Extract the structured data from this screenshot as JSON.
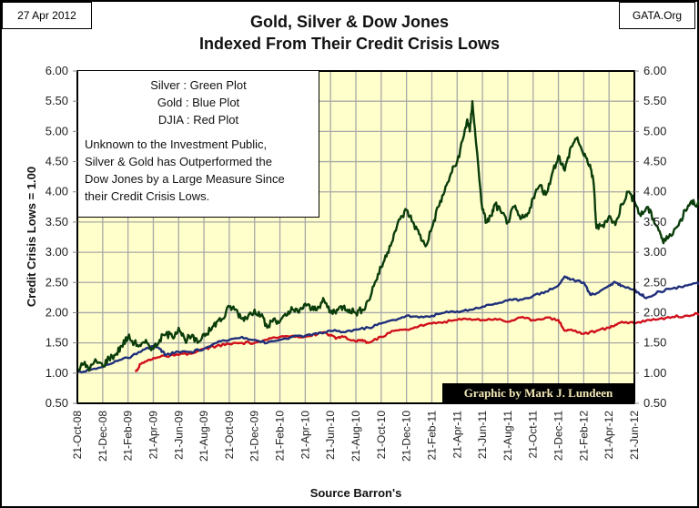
{
  "header": {
    "date": "27 Apr 2012",
    "site": "GATA.Org",
    "title_line1": "Gold, Silver & Dow Jones",
    "title_line2": "Indexed From Their Credit Crisis Lows"
  },
  "legend": {
    "lines": [
      "Silver : Green Plot",
      "Gold : Blue Plot",
      "DJIA : Red Plot"
    ],
    "note_lines": [
      "Unknown to the Investment Public,",
      "Silver & Gold has Outperformed the",
      "Dow Jones by a Large Measure Since",
      "their Credit Crisis Lows."
    ]
  },
  "credit": "Graphic by Mark J. Lundeen",
  "colors": {
    "plot_bg": "#FFFFCC",
    "grid": "#A8A8A8",
    "silver": "#0B3D0B",
    "gold": "#1F2F7A",
    "djia": "#D0101A"
  },
  "chart_data": {
    "type": "line",
    "title": "Gold, Silver & Dow Jones Indexed From Their Credit Crisis Lows",
    "xlabel": "Source Barron's",
    "ylabel": "Credit Crisis Lows = 1.00",
    "ylim": [
      0.5,
      6.0
    ],
    "y_ticks": [
      "0.50",
      "1.00",
      "1.50",
      "2.00",
      "2.50",
      "3.00",
      "3.50",
      "4.00",
      "4.50",
      "5.00",
      "5.50",
      "6.00"
    ],
    "x_unit": "months since 21-Oct-08",
    "x_range": [
      0,
      42
    ],
    "x_tick_labels": [
      "21-Oct-08",
      "21-Dec-08",
      "21-Feb-09",
      "21-Apr-09",
      "21-Jun-09",
      "21-Aug-09",
      "21-Oct-09",
      "21-Dec-09",
      "21-Feb-10",
      "21-Apr-10",
      "21-Jun-10",
      "21-Aug-10",
      "21-Oct-10",
      "21-Dec-10",
      "21-Feb-11",
      "21-Apr-11",
      "21-Jun-11",
      "21-Aug-11",
      "21-Oct-11",
      "21-Dec-11",
      "21-Feb-12",
      "21-Apr-12",
      "21-Jun-12"
    ],
    "grid": true,
    "legend_position": "top-left",
    "series": [
      {
        "name": "Silver",
        "color": "#0B3D0B",
        "points": [
          [
            0,
            1.05
          ],
          [
            0.5,
            1.15
          ],
          [
            1,
            1.08
          ],
          [
            1.5,
            1.2
          ],
          [
            2,
            1.12
          ],
          [
            2.5,
            1.25
          ],
          [
            3,
            1.3
          ],
          [
            3.5,
            1.45
          ],
          [
            4,
            1.6
          ],
          [
            4.5,
            1.5
          ],
          [
            5,
            1.45
          ],
          [
            5.5,
            1.5
          ],
          [
            6,
            1.4
          ],
          [
            6.5,
            1.55
          ],
          [
            7,
            1.65
          ],
          [
            7.5,
            1.6
          ],
          [
            8,
            1.75
          ],
          [
            8.5,
            1.55
          ],
          [
            9,
            1.6
          ],
          [
            9.5,
            1.5
          ],
          [
            10,
            1.65
          ],
          [
            10.5,
            1.7
          ],
          [
            11,
            1.85
          ],
          [
            11.5,
            1.9
          ],
          [
            12,
            2.1
          ],
          [
            12.5,
            2.05
          ],
          [
            13,
            1.9
          ],
          [
            13.5,
            1.95
          ],
          [
            14,
            2.05
          ],
          [
            14.5,
            1.95
          ],
          [
            15,
            1.75
          ],
          [
            15.5,
            1.9
          ],
          [
            16,
            1.85
          ],
          [
            16.5,
            1.95
          ],
          [
            17,
            2.05
          ],
          [
            17.5,
            2.0
          ],
          [
            18,
            2.15
          ],
          [
            18.5,
            2.05
          ],
          [
            19,
            2.1
          ],
          [
            19.5,
            2.2
          ],
          [
            20,
            2.0
          ],
          [
            20.5,
            2.05
          ],
          [
            21,
            2.1
          ],
          [
            21.5,
            2.05
          ],
          [
            22,
            2.0
          ],
          [
            22.5,
            2.05
          ],
          [
            23,
            2.2
          ],
          [
            23.5,
            2.5
          ],
          [
            24,
            2.75
          ],
          [
            24.5,
            3.0
          ],
          [
            25,
            3.3
          ],
          [
            25.5,
            3.55
          ],
          [
            26,
            3.7
          ],
          [
            26.5,
            3.5
          ],
          [
            27,
            3.3
          ],
          [
            27.5,
            3.1
          ],
          [
            28,
            3.4
          ],
          [
            28.5,
            3.75
          ],
          [
            29,
            4.0
          ],
          [
            29.5,
            4.3
          ],
          [
            30,
            4.5
          ],
          [
            30.5,
            4.9
          ],
          [
            30.8,
            5.2
          ],
          [
            31,
            5.0
          ],
          [
            31.2,
            5.5
          ],
          [
            31.5,
            4.8
          ],
          [
            32,
            3.7
          ],
          [
            32.3,
            3.5
          ],
          [
            32.7,
            3.6
          ],
          [
            33,
            3.8
          ],
          [
            33.5,
            3.65
          ],
          [
            34,
            3.5
          ],
          [
            34.5,
            3.75
          ],
          [
            35,
            3.55
          ],
          [
            35.5,
            3.6
          ],
          [
            36,
            3.9
          ],
          [
            36.5,
            4.1
          ],
          [
            37,
            3.95
          ],
          [
            37.5,
            4.3
          ],
          [
            38,
            4.6
          ],
          [
            38.5,
            4.35
          ],
          [
            39,
            4.75
          ],
          [
            39.5,
            4.9
          ],
          [
            40,
            4.6
          ],
          [
            40.5,
            4.45
          ],
          [
            40.8,
            4.1
          ],
          [
            41,
            3.4
          ],
          [
            41.5,
            3.45
          ],
          [
            42,
            3.6
          ],
          [
            42.5,
            3.45
          ],
          [
            43,
            3.8
          ],
          [
            43.5,
            4.0
          ],
          [
            44,
            3.85
          ],
          [
            44.5,
            3.6
          ],
          [
            45,
            3.75
          ],
          [
            45.5,
            3.55
          ],
          [
            46,
            3.35
          ],
          [
            46.3,
            3.15
          ],
          [
            46.8,
            3.3
          ],
          [
            47.5,
            3.45
          ],
          [
            48,
            3.7
          ],
          [
            48.5,
            3.85
          ],
          [
            49,
            3.8
          ],
          [
            49.5,
            3.9
          ],
          [
            50,
            4.2
          ],
          [
            50.5,
            3.95
          ],
          [
            51,
            3.75
          ],
          [
            51.5,
            3.7
          ],
          [
            52,
            3.65
          ],
          [
            52.5,
            3.6
          ],
          [
            53,
            3.5
          ]
        ]
      },
      {
        "name": "Gold",
        "color": "#1F2F7A",
        "points": [
          [
            0,
            1.02
          ],
          [
            1,
            1.05
          ],
          [
            2,
            1.1
          ],
          [
            3,
            1.2
          ],
          [
            4,
            1.25
          ],
          [
            5,
            1.35
          ],
          [
            6,
            1.45
          ],
          [
            6.5,
            1.4
          ],
          [
            7,
            1.3
          ],
          [
            8,
            1.35
          ],
          [
            9,
            1.35
          ],
          [
            10,
            1.4
          ],
          [
            11,
            1.5
          ],
          [
            12,
            1.55
          ],
          [
            13,
            1.6
          ],
          [
            14,
            1.55
          ],
          [
            15,
            1.5
          ],
          [
            16,
            1.55
          ],
          [
            17,
            1.6
          ],
          [
            18,
            1.62
          ],
          [
            19,
            1.65
          ],
          [
            20,
            1.7
          ],
          [
            21,
            1.68
          ],
          [
            22,
            1.72
          ],
          [
            23,
            1.75
          ],
          [
            24,
            1.82
          ],
          [
            25,
            1.88
          ],
          [
            26,
            1.95
          ],
          [
            27,
            1.92
          ],
          [
            28,
            1.95
          ],
          [
            29,
            2.0
          ],
          [
            30,
            2.02
          ],
          [
            31,
            2.05
          ],
          [
            32,
            2.1
          ],
          [
            33,
            2.15
          ],
          [
            34,
            2.2
          ],
          [
            35,
            2.22
          ],
          [
            36,
            2.28
          ],
          [
            37,
            2.35
          ],
          [
            38,
            2.45
          ],
          [
            38.5,
            2.6
          ],
          [
            39,
            2.55
          ],
          [
            40,
            2.5
          ],
          [
            40.5,
            2.3
          ],
          [
            41,
            2.32
          ],
          [
            42,
            2.45
          ],
          [
            42.5,
            2.5
          ],
          [
            43,
            2.45
          ],
          [
            44,
            2.38
          ],
          [
            44.5,
            2.3
          ],
          [
            45,
            2.25
          ],
          [
            46,
            2.35
          ],
          [
            47,
            2.4
          ],
          [
            48,
            2.45
          ],
          [
            49,
            2.5
          ],
          [
            49.5,
            2.4
          ],
          [
            50,
            2.35
          ],
          [
            51,
            2.3
          ],
          [
            52,
            2.3
          ],
          [
            53,
            2.3
          ]
        ]
      },
      {
        "name": "DJIA",
        "color": "#D0101A",
        "points": [
          [
            4.6,
            1.02
          ],
          [
            5,
            1.15
          ],
          [
            5.5,
            1.2
          ],
          [
            6,
            1.25
          ],
          [
            7,
            1.28
          ],
          [
            8,
            1.3
          ],
          [
            9,
            1.32
          ],
          [
            10,
            1.4
          ],
          [
            11,
            1.45
          ],
          [
            12,
            1.48
          ],
          [
            13,
            1.5
          ],
          [
            14,
            1.5
          ],
          [
            15,
            1.55
          ],
          [
            16,
            1.6
          ],
          [
            17,
            1.62
          ],
          [
            18,
            1.6
          ],
          [
            19,
            1.65
          ],
          [
            19.5,
            1.68
          ],
          [
            20,
            1.62
          ],
          [
            20.5,
            1.58
          ],
          [
            21,
            1.6
          ],
          [
            22,
            1.52
          ],
          [
            22.5,
            1.55
          ],
          [
            23,
            1.5
          ],
          [
            24,
            1.6
          ],
          [
            25,
            1.7
          ],
          [
            26,
            1.72
          ],
          [
            27,
            1.78
          ],
          [
            28,
            1.82
          ],
          [
            29,
            1.85
          ],
          [
            30,
            1.88
          ],
          [
            31,
            1.9
          ],
          [
            32,
            1.88
          ],
          [
            33,
            1.9
          ],
          [
            34,
            1.85
          ],
          [
            35,
            1.92
          ],
          [
            36,
            1.88
          ],
          [
            37,
            1.92
          ],
          [
            38,
            1.88
          ],
          [
            38.5,
            1.7
          ],
          [
            39,
            1.72
          ],
          [
            40,
            1.65
          ],
          [
            41,
            1.7
          ],
          [
            42,
            1.75
          ],
          [
            42.5,
            1.8
          ],
          [
            43,
            1.85
          ],
          [
            44,
            1.82
          ],
          [
            45,
            1.88
          ],
          [
            46,
            1.9
          ],
          [
            47,
            1.93
          ],
          [
            48,
            1.95
          ],
          [
            49,
            1.98
          ],
          [
            50,
            2.0
          ],
          [
            51,
            2.02
          ],
          [
            52,
            2.0
          ],
          [
            53,
            2.0
          ]
        ]
      }
    ]
  }
}
